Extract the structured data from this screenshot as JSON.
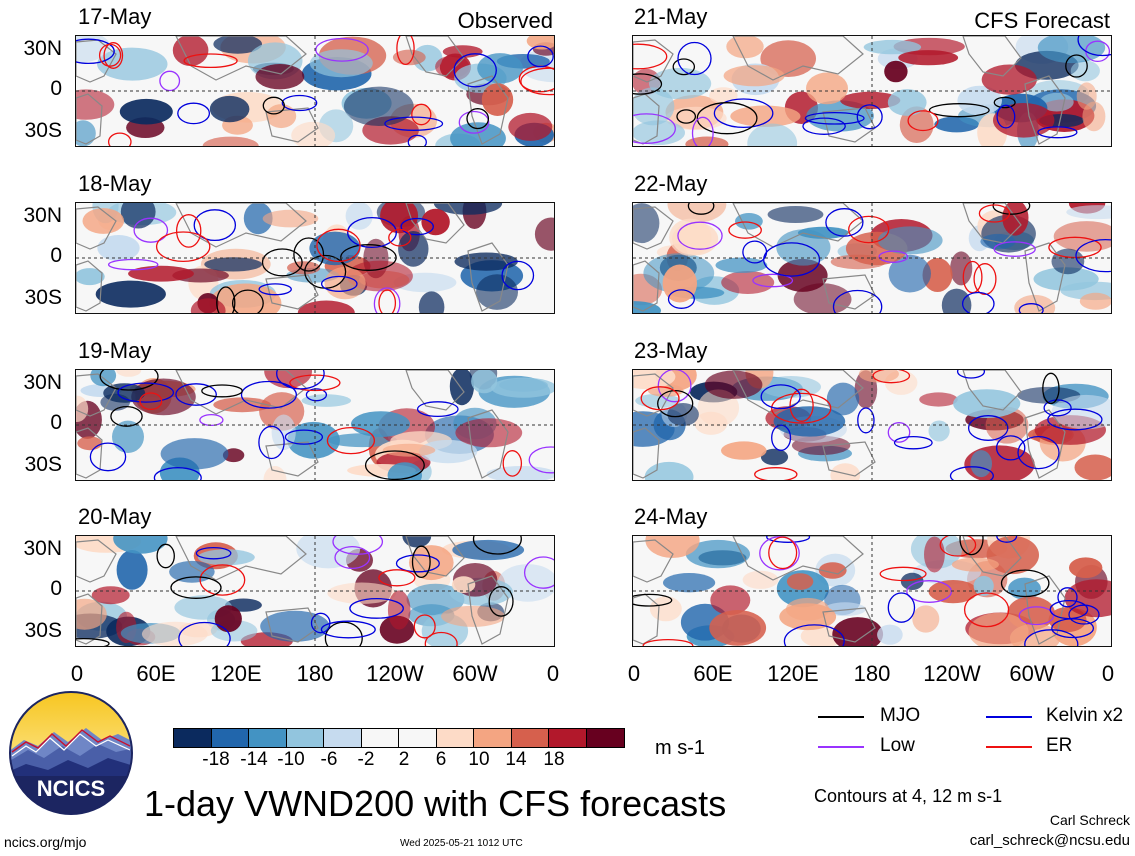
{
  "headers": {
    "left": "Observed",
    "right": "CFS Forecast"
  },
  "left_panels": [
    {
      "date": "17-May"
    },
    {
      "date": "18-May"
    },
    {
      "date": "19-May"
    },
    {
      "date": "20-May"
    }
  ],
  "right_panels": [
    {
      "date": "21-May"
    },
    {
      "date": "22-May"
    },
    {
      "date": "23-May"
    },
    {
      "date": "24-May"
    }
  ],
  "lat_labels": [
    "30N",
    "0",
    "30S"
  ],
  "lon_labels": [
    "0",
    "60E",
    "120E",
    "180",
    "120W",
    "60W",
    "0"
  ],
  "colorbar": {
    "colors": [
      "#0b2a5e",
      "#2166ac",
      "#4393c3",
      "#92c5de",
      "#c6dbef",
      "#f7f7f7",
      "#f7f7f7",
      "#fddbc7",
      "#f4a582",
      "#d6604d",
      "#b2182b",
      "#67001f"
    ],
    "labels": [
      "-18",
      "-14",
      "-10",
      "-6",
      "-2",
      "2",
      "6",
      "10",
      "14",
      "18"
    ],
    "units": "m s-1"
  },
  "legend": [
    {
      "label": "MJO",
      "color": "#000000"
    },
    {
      "label": "Kelvin x2",
      "color": "#0000dd"
    },
    {
      "label": "Low",
      "color": "#9933ff"
    },
    {
      "label": "ER",
      "color": "#ee1111"
    }
  ],
  "logo_text": "NCICS",
  "title": "1-day VWND200 with CFS forecasts",
  "contour_note": "Contours at 4, 12 m s-1",
  "author": "Carl Schreck",
  "email": "carl_schreck@ncsu.edu",
  "url": "ncics.org/mjo",
  "timestamp": "Wed 2025-05-21 1012 UTC"
}
